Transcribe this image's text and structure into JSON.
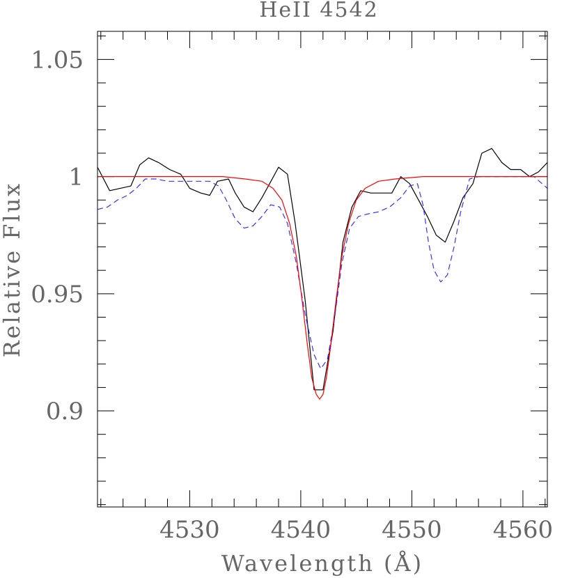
{
  "chart_data": {
    "type": "line",
    "title": "HeII 4542",
    "xlabel": "Wavelength (Å)",
    "ylabel": "Relative Flux",
    "xlim": [
      4521.7,
      4562.2
    ],
    "ylim": [
      0.859,
      1.062
    ],
    "x_ticks": [
      4530,
      4540,
      4550,
      4560
    ],
    "x_tick_labels": [
      "4530",
      "4540",
      "4550",
      "4560"
    ],
    "y_ticks": [
      0.9,
      0.95,
      1.0,
      1.05
    ],
    "y_tick_labels": [
      "0.9",
      "0.95",
      "1",
      "1.05"
    ],
    "x_minor_step": 2,
    "y_minor_step": 0.01,
    "grid": false,
    "series": [
      {
        "color": "#000000",
        "dash": "solid",
        "points": [
          [
            4521.7,
            1.004
          ],
          [
            4522.8,
            0.994
          ],
          [
            4524.7,
            0.996
          ],
          [
            4525.5,
            1.005
          ],
          [
            4526.3,
            1.008
          ],
          [
            4527.2,
            1.006
          ],
          [
            4528.2,
            1.003
          ],
          [
            4529.2,
            1.001
          ],
          [
            4530.0,
            0.995
          ],
          [
            4531.0,
            0.993
          ],
          [
            4531.8,
            0.992
          ],
          [
            4532.5,
            0.998
          ],
          [
            4533.5,
            0.999
          ],
          [
            4534.1,
            0.993
          ],
          [
            4534.9,
            0.987
          ],
          [
            4535.7,
            0.985
          ],
          [
            4536.5,
            0.991
          ],
          [
            4537.2,
            0.997
          ],
          [
            4538.0,
            1.004
          ],
          [
            4538.8,
            1.001
          ],
          [
            4539.5,
            0.98
          ],
          [
            4540.4,
            0.947
          ],
          [
            4541.2,
            0.909
          ],
          [
            4542.0,
            0.909
          ],
          [
            4542.9,
            0.934
          ],
          [
            4543.8,
            0.972
          ],
          [
            4544.6,
            0.987
          ],
          [
            4545.4,
            0.994
          ],
          [
            4546.3,
            0.993
          ],
          [
            4547.3,
            0.993
          ],
          [
            4548.2,
            0.993
          ],
          [
            4549.0,
            1.0
          ],
          [
            4549.8,
            0.997
          ],
          [
            4550.6,
            0.99
          ],
          [
            4551.4,
            0.983
          ],
          [
            4552.2,
            0.975
          ],
          [
            4553.0,
            0.972
          ],
          [
            4553.8,
            0.981
          ],
          [
            4554.6,
            0.991
          ],
          [
            4555.5,
            0.997
          ],
          [
            4556.3,
            1.01
          ],
          [
            4557.2,
            1.012
          ],
          [
            4558.1,
            1.006
          ],
          [
            4558.9,
            1.003
          ],
          [
            4559.8,
            1.003
          ],
          [
            4560.6,
            1.0
          ],
          [
            4561.4,
            1.002
          ],
          [
            4562.2,
            1.006
          ]
        ]
      },
      {
        "color": "#3333ff",
        "dash": "dashed",
        "points": [
          [
            4521.7,
            0.986
          ],
          [
            4522.6,
            0.987
          ],
          [
            4523.5,
            0.99
          ],
          [
            4524.4,
            0.992
          ],
          [
            4525.2,
            0.995
          ],
          [
            4526.0,
            0.999
          ],
          [
            4527.0,
            0.999
          ],
          [
            4528.0,
            0.998
          ],
          [
            4529.0,
            0.998
          ],
          [
            4530.0,
            0.998
          ],
          [
            4531.0,
            0.998
          ],
          [
            4531.8,
            0.998
          ],
          [
            4532.6,
            0.996
          ],
          [
            4533.3,
            0.99
          ],
          [
            4534.1,
            0.982
          ],
          [
            4534.9,
            0.978
          ],
          [
            4535.7,
            0.979
          ],
          [
            4536.5,
            0.983
          ],
          [
            4537.3,
            0.988
          ],
          [
            4538.1,
            0.987
          ],
          [
            4538.8,
            0.98
          ],
          [
            4539.6,
            0.963
          ],
          [
            4540.4,
            0.941
          ],
          [
            4541.2,
            0.924
          ],
          [
            4541.8,
            0.918
          ],
          [
            4542.4,
            0.922
          ],
          [
            4543.0,
            0.938
          ],
          [
            4543.7,
            0.963
          ],
          [
            4544.4,
            0.978
          ],
          [
            4545.2,
            0.983
          ],
          [
            4546.0,
            0.984
          ],
          [
            4547.0,
            0.985
          ],
          [
            4548.0,
            0.987
          ],
          [
            4549.0,
            0.991
          ],
          [
            4549.8,
            0.996
          ],
          [
            4550.5,
            0.997
          ],
          [
            4551.0,
            0.988
          ],
          [
            4551.5,
            0.972
          ],
          [
            4552.0,
            0.96
          ],
          [
            4552.6,
            0.955
          ],
          [
            4553.2,
            0.958
          ],
          [
            4553.8,
            0.97
          ],
          [
            4554.4,
            0.985
          ],
          [
            4555.2,
            0.999
          ],
          [
            4556.0,
            1.0
          ],
          [
            4557.0,
            1.0
          ],
          [
            4558.0,
            1.0
          ],
          [
            4559.0,
            1.0
          ],
          [
            4560.0,
            1.0
          ],
          [
            4561.0,
            1.0
          ],
          [
            4562.2,
            0.995
          ]
        ]
      },
      {
        "color": "#ff0000",
        "dash": "solid",
        "points": [
          [
            4521.7,
            1.0
          ],
          [
            4528.0,
            1.0
          ],
          [
            4533.0,
            1.0
          ],
          [
            4535.0,
            0.999
          ],
          [
            4536.5,
            0.998
          ],
          [
            4537.5,
            0.995
          ],
          [
            4538.3,
            0.99
          ],
          [
            4539.0,
            0.98
          ],
          [
            4539.6,
            0.966
          ],
          [
            4540.1,
            0.948
          ],
          [
            4540.6,
            0.928
          ],
          [
            4541.0,
            0.914
          ],
          [
            4541.4,
            0.907
          ],
          [
            4541.7,
            0.905
          ],
          [
            4542.0,
            0.907
          ],
          [
            4542.3,
            0.914
          ],
          [
            4542.7,
            0.928
          ],
          [
            4543.2,
            0.948
          ],
          [
            4543.7,
            0.966
          ],
          [
            4544.3,
            0.98
          ],
          [
            4545.0,
            0.99
          ],
          [
            4545.8,
            0.995
          ],
          [
            4547.0,
            0.998
          ],
          [
            4548.5,
            0.999
          ],
          [
            4551.0,
            1.0
          ],
          [
            4555.0,
            1.0
          ],
          [
            4562.2,
            1.0
          ]
        ]
      }
    ]
  }
}
